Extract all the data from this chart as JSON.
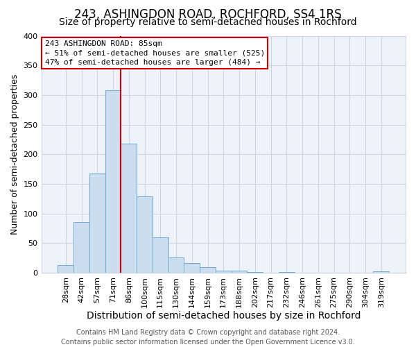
{
  "title": "243, ASHINGDON ROAD, ROCHFORD, SS4 1RS",
  "subtitle": "Size of property relative to semi-detached houses in Rochford",
  "bar_labels": [
    "28sqm",
    "42sqm",
    "57sqm",
    "71sqm",
    "86sqm",
    "100sqm",
    "115sqm",
    "130sqm",
    "144sqm",
    "159sqm",
    "173sqm",
    "188sqm",
    "202sqm",
    "217sqm",
    "232sqm",
    "246sqm",
    "261sqm",
    "275sqm",
    "290sqm",
    "304sqm",
    "319sqm"
  ],
  "bar_heights": [
    13,
    86,
    167,
    308,
    218,
    129,
    60,
    26,
    17,
    10,
    4,
    4,
    1,
    0,
    1,
    0,
    0,
    0,
    0,
    0,
    2
  ],
  "bar_color": "#ccddf0",
  "bar_edge_color": "#6aaad4",
  "property_line_color": "#cc0000",
  "xlabel": "Distribution of semi-detached houses by size in Rochford",
  "ylabel": "Number of semi-detached properties",
  "ylim": [
    0,
    400
  ],
  "yticks": [
    0,
    50,
    100,
    150,
    200,
    250,
    300,
    350,
    400
  ],
  "annotation_title": "243 ASHINGDON ROAD: 85sqm",
  "annotation_line1": "← 51% of semi-detached houses are smaller (525)",
  "annotation_line2": "47% of semi-detached houses are larger (484) →",
  "annotation_box_color": "#cc0000",
  "footer_line1": "Contains HM Land Registry data © Crown copyright and database right 2024.",
  "footer_line2": "Contains public sector information licensed under the Open Government Licence v3.0.",
  "grid_color": "#c8d4e3",
  "background_color": "#eef3fa",
  "title_fontsize": 12,
  "subtitle_fontsize": 10,
  "xlabel_fontsize": 10,
  "ylabel_fontsize": 9,
  "tick_fontsize": 8,
  "footer_fontsize": 7
}
